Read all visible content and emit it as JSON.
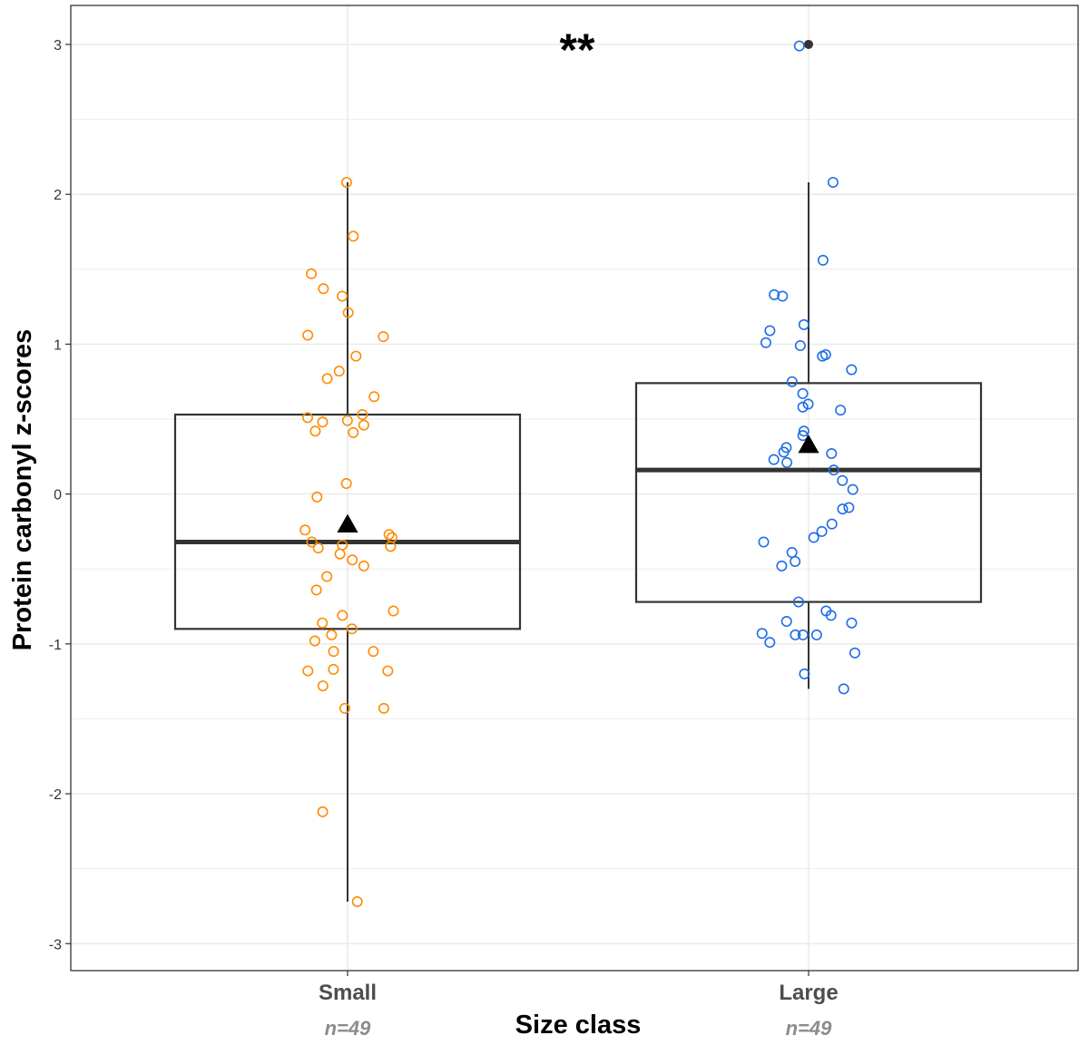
{
  "chart_data": {
    "type": "boxplot",
    "title": "",
    "xlabel": "Size class",
    "ylabel": "Protein carbonyl z-scores",
    "ylim": [
      -3,
      3
    ],
    "yticks": [
      "-3",
      "-2",
      "-1",
      "0",
      "1",
      "2",
      "3"
    ],
    "grid": true,
    "annotation": "**",
    "categories": [
      "Small",
      "Large"
    ],
    "groups": [
      {
        "name": "Small",
        "n_label": "n=49",
        "color": "#FF8C00",
        "whisker_low": -2.72,
        "q1": -0.9,
        "median": -0.32,
        "q3": 0.53,
        "whisker_high": 2.08,
        "mean": -0.2,
        "outliers": [],
        "points": [
          [
            0.02,
            2.08
          ],
          [
            0.02,
            1.72
          ],
          [
            0.02,
            1.47
          ],
          [
            0.02,
            1.37
          ],
          [
            0.02,
            1.32
          ],
          [
            0.02,
            1.21
          ],
          [
            0.02,
            1.06
          ],
          [
            0.02,
            1.05
          ],
          [
            0.02,
            0.92
          ],
          [
            0.02,
            0.82
          ],
          [
            0.02,
            0.77
          ],
          [
            0.02,
            0.65
          ],
          [
            0.02,
            0.53
          ],
          [
            0.02,
            0.51
          ],
          [
            0.02,
            0.49
          ],
          [
            0.02,
            0.48
          ],
          [
            0.02,
            0.46
          ],
          [
            0.02,
            0.42
          ],
          [
            0.02,
            0.41
          ],
          [
            0.02,
            0.07
          ],
          [
            0.02,
            -0.02
          ],
          [
            0.02,
            -0.24
          ],
          [
            0.02,
            -0.27
          ],
          [
            0.02,
            -0.29
          ],
          [
            0.02,
            -0.32
          ],
          [
            0.02,
            -0.34
          ],
          [
            0.02,
            -0.35
          ],
          [
            0.02,
            -0.36
          ],
          [
            0.02,
            -0.4
          ],
          [
            0.02,
            -0.44
          ],
          [
            0.02,
            -0.48
          ],
          [
            0.02,
            -0.55
          ],
          [
            0.02,
            -0.64
          ],
          [
            0.02,
            -0.78
          ],
          [
            0.02,
            -0.81
          ],
          [
            0.02,
            -0.86
          ],
          [
            0.02,
            -0.9
          ],
          [
            0.02,
            -0.94
          ],
          [
            0.02,
            -0.98
          ],
          [
            0.02,
            -1.05
          ],
          [
            0.02,
            -1.05
          ],
          [
            0.02,
            -1.17
          ],
          [
            0.02,
            -1.18
          ],
          [
            0.02,
            -1.18
          ],
          [
            0.02,
            -1.28
          ],
          [
            0.02,
            -1.43
          ],
          [
            0.02,
            -1.43
          ],
          [
            0.02,
            -2.12
          ],
          [
            0.02,
            -2.72
          ]
        ]
      },
      {
        "name": "Large",
        "n_label": "n=49",
        "color": "#1E6FE6",
        "whisker_low": -1.3,
        "q1": -0.72,
        "median": 0.16,
        "q3": 0.74,
        "whisker_high": 2.08,
        "mean": 0.33,
        "outliers": [
          3.0
        ],
        "points": [
          [
            0.02,
            2.99
          ],
          [
            0.02,
            2.08
          ],
          [
            0.02,
            1.56
          ],
          [
            0.02,
            1.33
          ],
          [
            0.02,
            1.32
          ],
          [
            0.02,
            1.13
          ],
          [
            0.02,
            1.09
          ],
          [
            0.02,
            1.01
          ],
          [
            0.02,
            0.99
          ],
          [
            0.02,
            0.93
          ],
          [
            0.02,
            0.92
          ],
          [
            0.02,
            0.83
          ],
          [
            0.02,
            0.75
          ],
          [
            0.02,
            0.67
          ],
          [
            0.02,
            0.6
          ],
          [
            0.02,
            0.58
          ],
          [
            0.02,
            0.56
          ],
          [
            0.02,
            0.42
          ],
          [
            0.02,
            0.39
          ],
          [
            0.02,
            0.31
          ],
          [
            0.02,
            0.28
          ],
          [
            0.02,
            0.27
          ],
          [
            0.02,
            0.23
          ],
          [
            0.02,
            0.21
          ],
          [
            0.02,
            0.16
          ],
          [
            0.02,
            0.09
          ],
          [
            0.02,
            0.03
          ],
          [
            0.02,
            -0.09
          ],
          [
            0.02,
            -0.1
          ],
          [
            0.02,
            -0.2
          ],
          [
            0.02,
            -0.25
          ],
          [
            0.02,
            -0.29
          ],
          [
            0.02,
            -0.32
          ],
          [
            0.02,
            -0.39
          ],
          [
            0.02,
            -0.45
          ],
          [
            0.02,
            -0.48
          ],
          [
            0.02,
            -0.72
          ],
          [
            0.02,
            -0.78
          ],
          [
            0.02,
            -0.81
          ],
          [
            0.02,
            -0.85
          ],
          [
            0.02,
            -0.86
          ],
          [
            0.02,
            -0.93
          ],
          [
            0.02,
            -0.94
          ],
          [
            0.02,
            -0.94
          ],
          [
            0.02,
            -0.94
          ],
          [
            0.02,
            -0.99
          ],
          [
            0.02,
            -1.06
          ],
          [
            0.02,
            -1.2
          ],
          [
            0.02,
            -1.3
          ]
        ]
      }
    ]
  }
}
